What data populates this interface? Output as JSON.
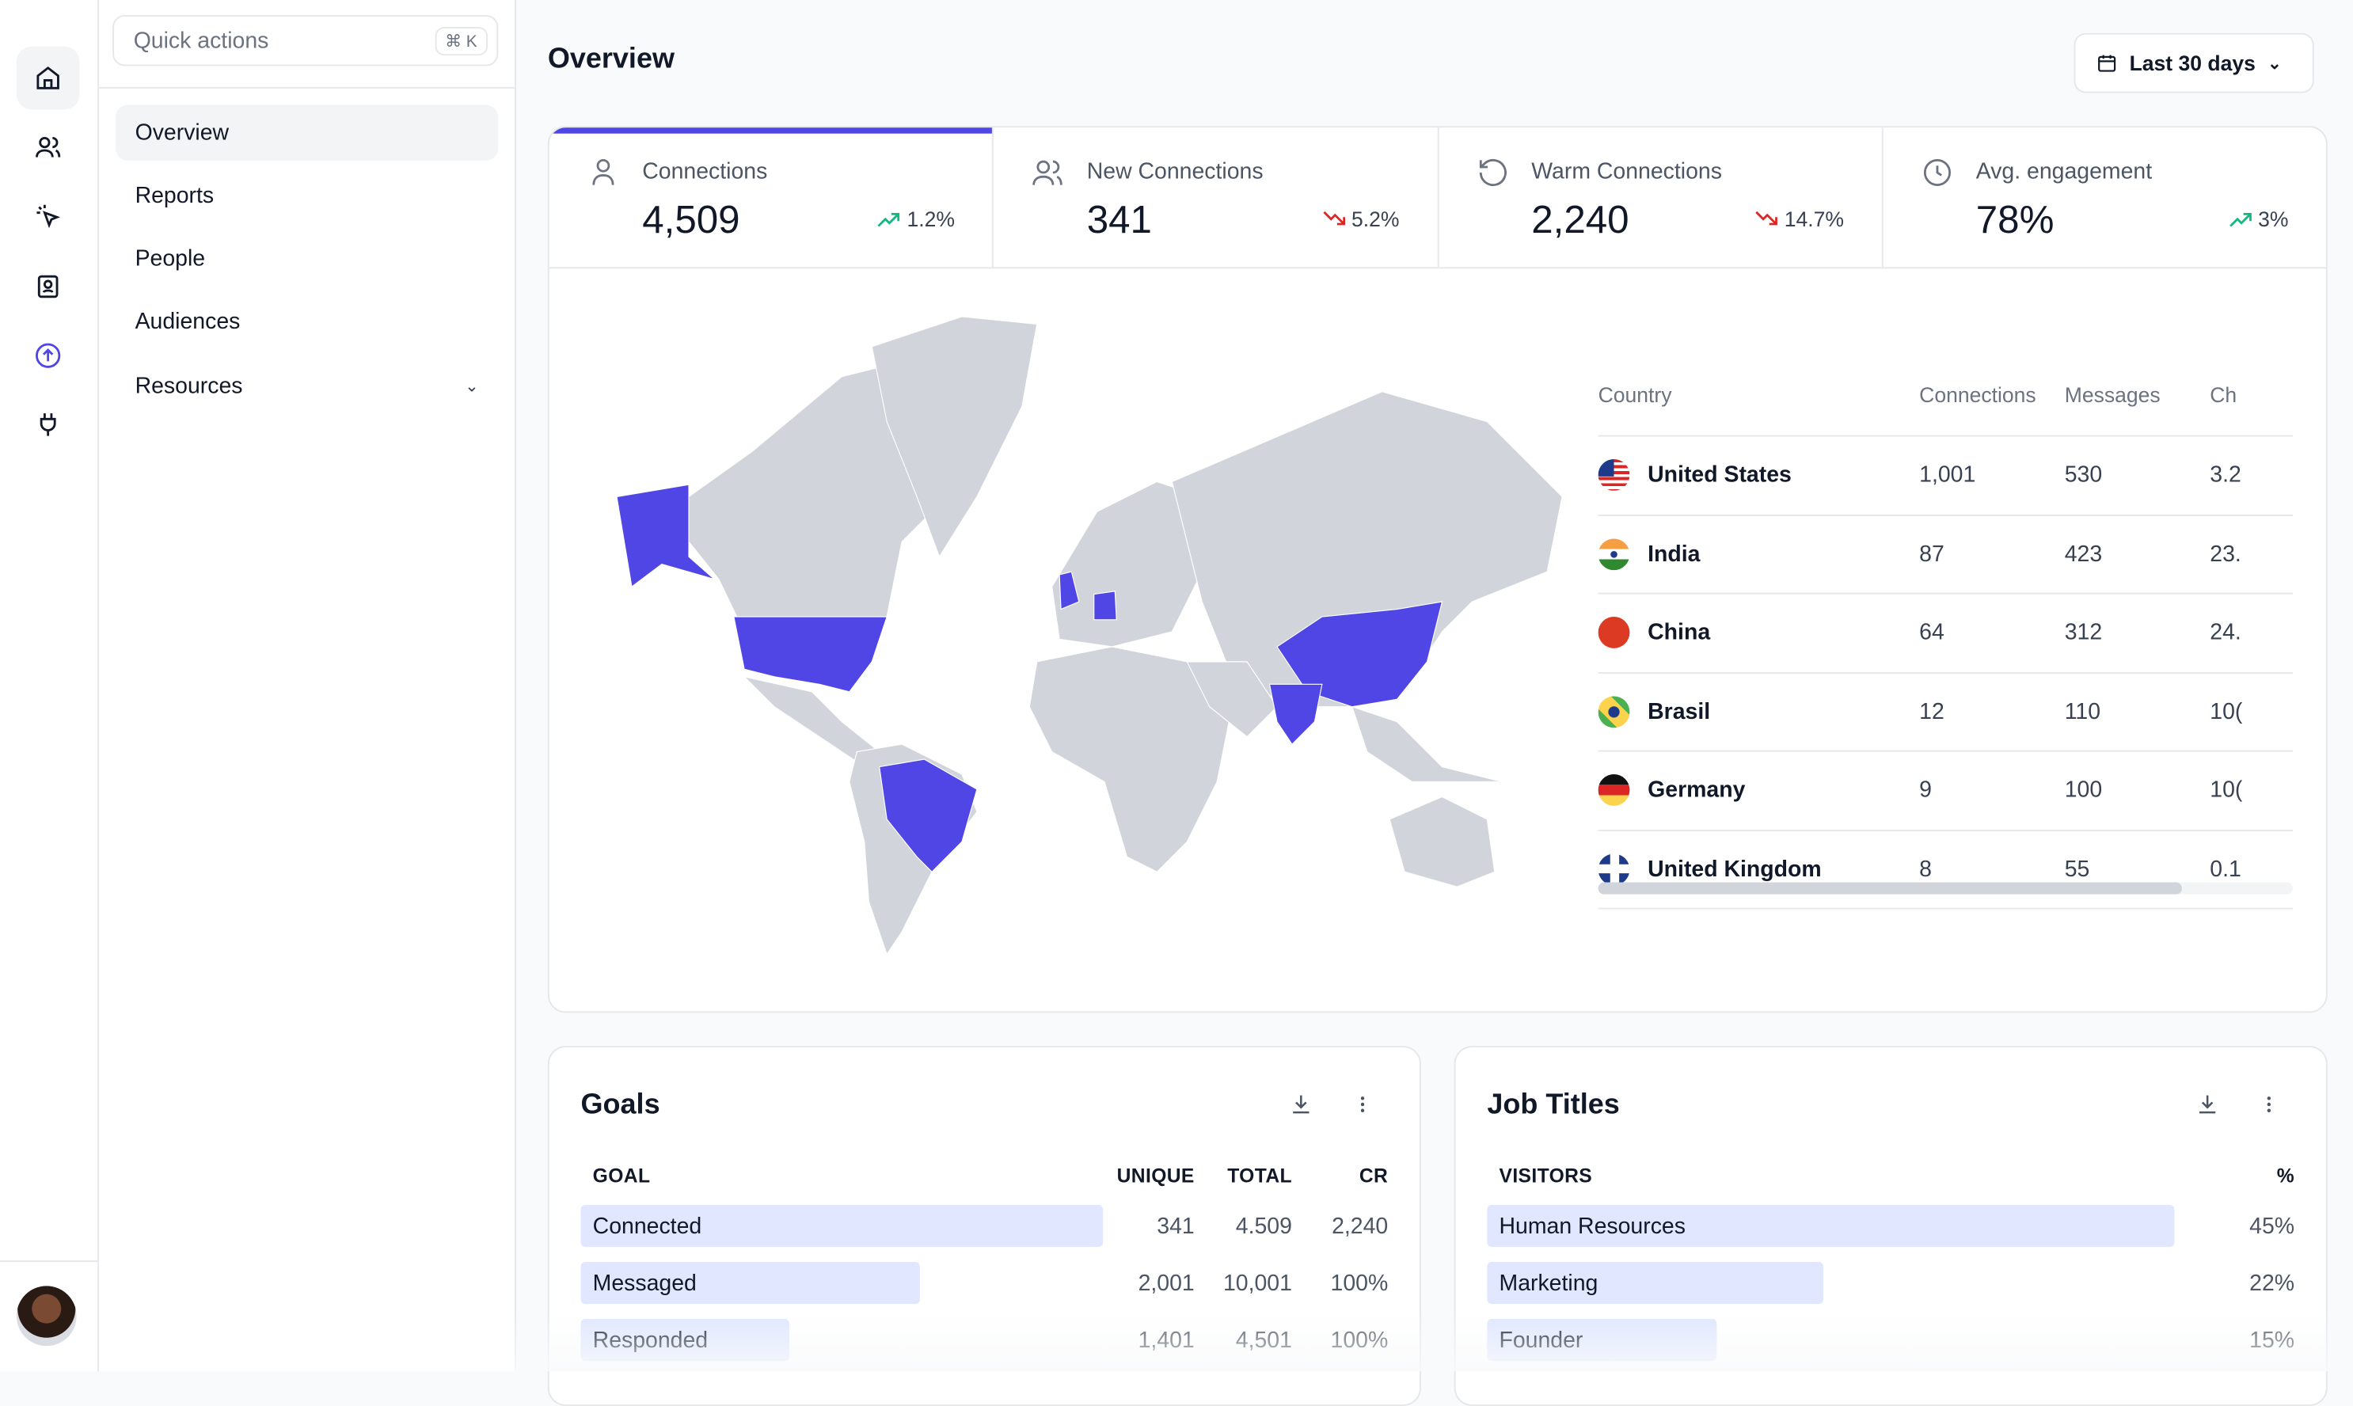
{
  "quick_actions": {
    "placeholder": "Quick actions",
    "shortcut": "⌘ K"
  },
  "rail": {
    "icons": [
      "home-icon",
      "users-icon",
      "cursor-click-icon",
      "contact-icon",
      "upload-circle-icon",
      "plug-icon"
    ],
    "accent": "#4f46e5"
  },
  "sidebar": {
    "items": [
      {
        "label": "Overview",
        "active": true
      },
      {
        "label": "Reports"
      },
      {
        "label": "People"
      },
      {
        "label": "Audiences"
      },
      {
        "label": "Resources",
        "expandable": true
      }
    ]
  },
  "header": {
    "title": "Overview",
    "date_range": "Last 30 days"
  },
  "kpis": [
    {
      "label": "Connections",
      "value": "4,509",
      "delta": "1.2%",
      "trend": "up",
      "icon": "user-icon",
      "active": true
    },
    {
      "label": "New Connections",
      "value": "341",
      "delta": "5.2%",
      "trend": "down",
      "icon": "users-icon"
    },
    {
      "label": "Warm Connections",
      "value": "2,240",
      "delta": "14.7%",
      "trend": "down",
      "icon": "refresh-icon"
    },
    {
      "label": "Avg. engagement",
      "value": "78%",
      "delta": "3%",
      "trend": "up",
      "icon": "clock-icon"
    }
  ],
  "colors": {
    "highlight": "#4f46e5",
    "land": "#d1d5db",
    "up": "#10b981",
    "down": "#dc2626"
  },
  "countries": {
    "headers": [
      "Country",
      "Connections",
      "Messages",
      "Ch"
    ],
    "rows": [
      {
        "name": "United States",
        "connections": "1,001",
        "messages": "530",
        "ch": "3.2"
      },
      {
        "name": "India",
        "connections": "87",
        "messages": "423",
        "ch": "23."
      },
      {
        "name": "China",
        "connections": "64",
        "messages": "312",
        "ch": "24."
      },
      {
        "name": "Brasil",
        "connections": "12",
        "messages": "110",
        "ch": "10("
      },
      {
        "name": "Germany",
        "connections": "9",
        "messages": "100",
        "ch": "10("
      },
      {
        "name": "United Kingdom",
        "connections": "8",
        "messages": "55",
        "ch": "0.1"
      }
    ],
    "scroll_fraction": 0.84
  },
  "goals": {
    "title": "Goals",
    "headers": [
      "GOAL",
      "UNIQUE",
      "TOTAL",
      "CR"
    ],
    "rows": [
      {
        "goal": "Connected",
        "unique": "341",
        "total": "4.509",
        "cr": "2,240",
        "bar": 1.0
      },
      {
        "goal": "Messaged",
        "unique": "2,001",
        "total": "10,001",
        "cr": "100%",
        "bar": 0.65
      },
      {
        "goal": "Responded",
        "unique": "1,401",
        "total": "4,501",
        "cr": "100%",
        "bar": 0.4
      }
    ]
  },
  "job_titles": {
    "title": "Job Titles",
    "headers": [
      "VISITORS",
      "%"
    ],
    "rows": [
      {
        "label": "Human Resources",
        "pct": "45%",
        "bar": 0.45
      },
      {
        "label": "Marketing",
        "pct": "22%",
        "bar": 0.22
      },
      {
        "label": "Founder",
        "pct": "15%",
        "bar": 0.15
      }
    ]
  }
}
